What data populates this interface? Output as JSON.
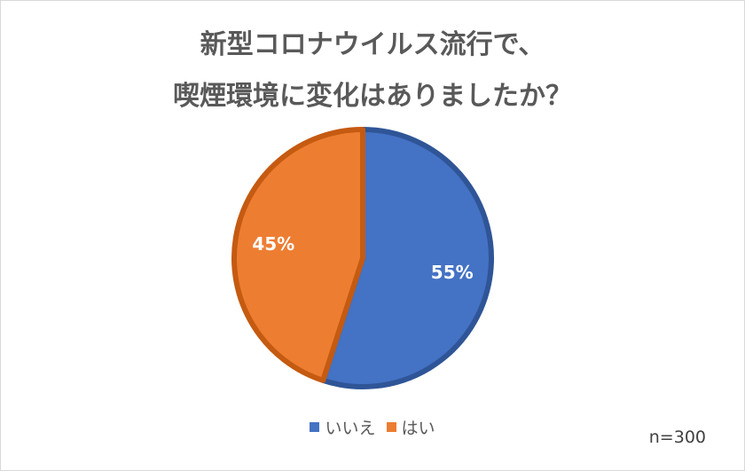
{
  "chart_data": {
    "type": "pie",
    "title_lines": [
      "新型コロナウイルス流行で、",
      "喫煙環境に変化はありましたか？"
    ],
    "slices": [
      {
        "label": "いいえ",
        "value": 55,
        "value_label": "55%",
        "color": "#4472C4",
        "edge": "#2F5597"
      },
      {
        "label": "はい",
        "value": 45,
        "value_label": "45%",
        "color": "#ED7D31",
        "edge": "#C55A11"
      }
    ],
    "legend_position": "bottom",
    "note": "n=300"
  }
}
